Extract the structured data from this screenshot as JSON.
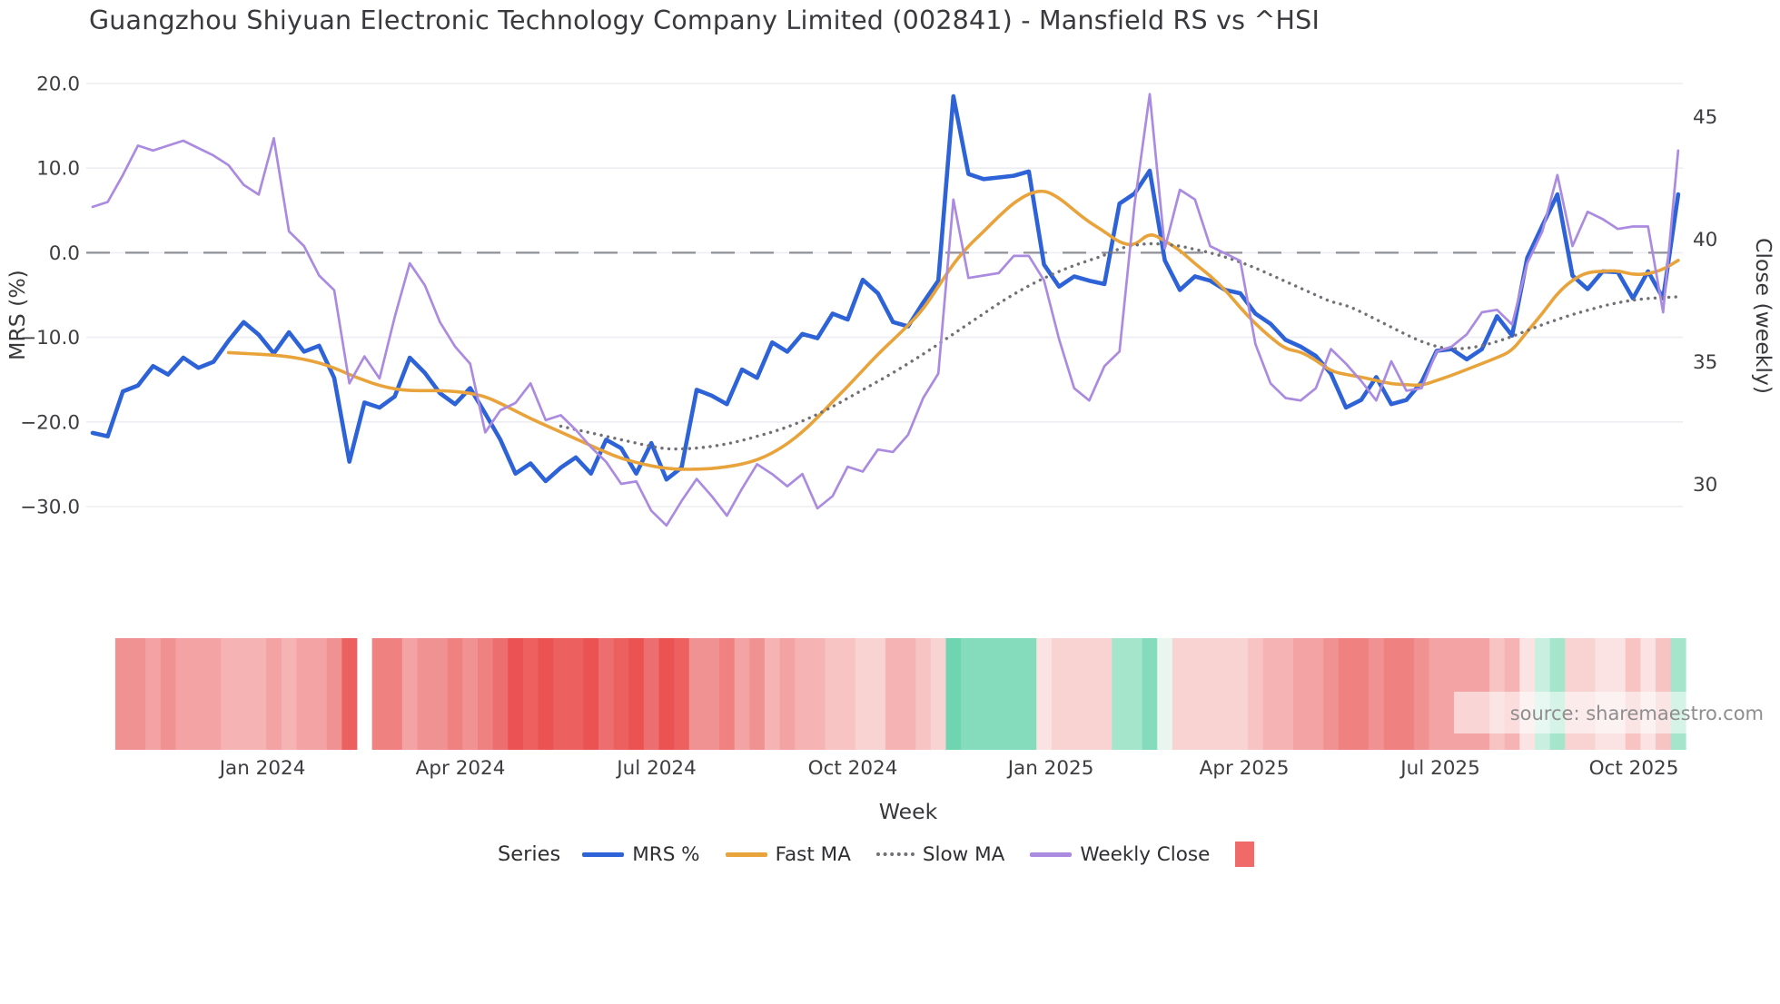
{
  "title": "Guangzhou Shiyuan Electronic Technology Company Limited (002841) - Mansfield RS vs ^HSI",
  "source_label": "source: sharemaestro.com",
  "colors": {
    "mrs": "#2e63d8",
    "fast": "#e9a33b",
    "slow": "#707076",
    "close": "#ab8be0",
    "zero_line": "#8f9097",
    "grid": "#edeef2",
    "heat_square": "#f06a6a",
    "title_text": "#3a3a3e",
    "tick_text": "#3d3d42",
    "source_text": "#8e8e8e"
  },
  "legend": {
    "series_label": "Series",
    "items": [
      {
        "id": "mrs",
        "label": "MRS %",
        "swatch": "line",
        "color_key": "mrs"
      },
      {
        "id": "fast",
        "label": "Fast MA",
        "swatch": "line",
        "color_key": "fast"
      },
      {
        "id": "slow",
        "label": "Slow MA",
        "swatch": "dots",
        "color_key": "slow"
      },
      {
        "id": "close",
        "label": "Weekly Close",
        "swatch": "line",
        "color_key": "close"
      },
      {
        "id": "heat",
        "label": "",
        "swatch": "square",
        "color_key": "heat_square"
      }
    ]
  },
  "chart_data": {
    "type": "line",
    "title": "Guangzhou Shiyuan Electronic Technology Company Limited (002841) - Mansfield RS vs ^HSI",
    "x_axis": {
      "label": "Week",
      "tick_labels": [
        "Jan 2024",
        "Apr 2024",
        "Jul 2024",
        "Oct 2024",
        "Jan 2025",
        "Apr 2025",
        "Jul 2025",
        "Oct 2025"
      ],
      "tick_week_index": [
        11.25,
        24.36,
        37.35,
        50.34,
        63.45,
        76.26,
        89.25,
        102.06
      ],
      "weeks_total": 106
    },
    "left_axis": {
      "label": "MRS (%)",
      "tick_labels": [
        "20.0",
        "10.0",
        "0.0",
        "−10.0",
        "−20.0",
        "−30.0"
      ],
      "tick_values": [
        20,
        10,
        0,
        -10,
        -20,
        -30
      ],
      "zero_dashed_line": true
    },
    "right_axis": {
      "label": "Close (weekly)",
      "tick_labels": [
        "45",
        "40",
        "35",
        "30"
      ],
      "tick_values": [
        45,
        40,
        35,
        30
      ]
    },
    "series": [
      {
        "name": "MRS %",
        "axis": "left",
        "color_key": "mrs",
        "width": 4.6,
        "style": "solid",
        "smooth": false,
        "values": [
          -21.3,
          -21.7,
          -16.4,
          -15.7,
          -13.4,
          -14.4,
          -12.4,
          -13.6,
          -12.9,
          -10.4,
          -8.2,
          -9.7,
          -11.9,
          -9.4,
          -11.7,
          -11.0,
          -14.8,
          -24.7,
          -17.7,
          -18.3,
          -17.0,
          -12.4,
          -14.2,
          -16.6,
          -17.9,
          -16.0,
          -19.0,
          -22.1,
          -26.1,
          -24.9,
          -27.0,
          -25.4,
          -24.2,
          -26.1,
          -22.1,
          -23.1,
          -26.1,
          -22.5,
          -26.8,
          -25.4,
          -16.2,
          -16.9,
          -17.9,
          -13.8,
          -14.8,
          -10.6,
          -11.7,
          -9.6,
          -10.1,
          -7.2,
          -7.9,
          -3.2,
          -4.8,
          -8.2,
          -8.7,
          -5.9,
          -3.3,
          18.5,
          9.3,
          8.7,
          8.9,
          9.1,
          9.6,
          -1.4,
          -4.0,
          -2.8,
          -3.3,
          -3.7,
          5.8,
          7.0,
          9.7,
          -0.9,
          -4.4,
          -2.8,
          -3.3,
          -4.4,
          -4.8,
          -7.2,
          -8.4,
          -10.3,
          -11.1,
          -12.2,
          -14.3,
          -18.3,
          -17.4,
          -14.7,
          -17.9,
          -17.4,
          -15.3,
          -11.6,
          -11.4,
          -12.6,
          -11.4,
          -7.5,
          -9.8,
          -0.6,
          3.2,
          6.9,
          -2.7,
          -4.3,
          -2.2,
          -2.3,
          -5.4,
          -2.2,
          -5.4,
          6.9
        ]
      },
      {
        "name": "Fast MA",
        "axis": "left",
        "color_key": "fast",
        "width": 3.6,
        "style": "solid",
        "smooth": true,
        "values": [
          null,
          null,
          null,
          null,
          null,
          null,
          null,
          null,
          null,
          -11.8,
          -11.9,
          -12.0,
          -12.1,
          -12.3,
          -12.6,
          -13.0,
          -13.6,
          -14.4,
          -15.1,
          -15.7,
          -16.1,
          -16.3,
          -16.3,
          -16.3,
          -16.4,
          -16.6,
          -17.0,
          -17.8,
          -18.7,
          -19.6,
          -20.4,
          -21.2,
          -22.0,
          -22.8,
          -23.6,
          -24.3,
          -24.8,
          -25.2,
          -25.5,
          -25.6,
          -25.6,
          -25.5,
          -25.3,
          -25.0,
          -24.5,
          -23.7,
          -22.6,
          -21.2,
          -19.5,
          -17.6,
          -15.8,
          -13.9,
          -12.0,
          -10.3,
          -8.6,
          -6.7,
          -4.0,
          -1.3,
          0.8,
          2.5,
          4.3,
          5.9,
          7.0,
          7.4,
          6.5,
          5.0,
          3.6,
          2.5,
          1.2,
          0.8,
          2.4,
          1.4,
          0.3,
          -1.3,
          -2.7,
          -4.4,
          -6.5,
          -8.4,
          -10.0,
          -11.4,
          -11.7,
          -12.7,
          -14.0,
          -14.4,
          -14.7,
          -15.1,
          -15.5,
          -15.6,
          -15.7,
          -15.1,
          -14.5,
          -13.8,
          -13.1,
          -12.4,
          -11.6,
          -9.3,
          -7.2,
          -4.8,
          -3.2,
          -2.3,
          -2.2,
          -2.1,
          -2.6,
          -2.5,
          -2.0,
          -0.9
        ]
      },
      {
        "name": "Slow MA",
        "axis": "left",
        "color_key": "slow",
        "width": 3.4,
        "style": "dotted",
        "smooth": true,
        "values": [
          null,
          null,
          null,
          null,
          null,
          null,
          null,
          null,
          null,
          null,
          null,
          null,
          null,
          null,
          null,
          null,
          null,
          null,
          null,
          null,
          null,
          null,
          null,
          null,
          null,
          null,
          null,
          null,
          null,
          null,
          null,
          -20.5,
          -20.9,
          -21.3,
          -21.7,
          -22.1,
          -22.5,
          -22.9,
          -23.2,
          -23.2,
          -23.1,
          -22.9,
          -22.6,
          -22.2,
          -21.7,
          -21.2,
          -20.6,
          -19.9,
          -19.1,
          -18.2,
          -17.2,
          -16.2,
          -15.2,
          -14.2,
          -13.1,
          -12.0,
          -10.8,
          -9.6,
          -8.4,
          -7.2,
          -6.0,
          -4.9,
          -3.9,
          -3.0,
          -2.2,
          -1.5,
          -0.9,
          -0.3,
          0.5,
          0.9,
          1.1,
          1.0,
          0.8,
          0.4,
          0.0,
          -0.5,
          -1.1,
          -1.8,
          -2.6,
          -3.4,
          -4.2,
          -5.0,
          -5.8,
          -6.2,
          -7.0,
          -7.9,
          -8.8,
          -9.7,
          -10.5,
          -11.1,
          -11.4,
          -11.3,
          -11.0,
          -10.5,
          -9.9,
          -9.2,
          -8.5,
          -7.9,
          -7.3,
          -6.8,
          -6.3,
          -5.9,
          -5.6,
          -5.4,
          -5.3,
          -5.2
        ]
      },
      {
        "name": "Weekly Close",
        "axis": "right",
        "color_key": "close",
        "width": 2.7,
        "style": "solid",
        "smooth": false,
        "values": [
          41.3,
          41.5,
          42.6,
          43.8,
          43.6,
          43.8,
          44.0,
          43.7,
          43.4,
          43.0,
          42.2,
          41.8,
          44.1,
          40.3,
          39.7,
          38.5,
          37.9,
          34.1,
          35.2,
          34.3,
          36.8,
          39.0,
          38.1,
          36.6,
          35.6,
          34.9,
          32.1,
          33.0,
          33.3,
          34.1,
          32.6,
          32.8,
          32.2,
          31.5,
          30.9,
          30.0,
          30.1,
          28.9,
          28.3,
          29.3,
          30.2,
          29.5,
          28.7,
          29.8,
          30.8,
          30.4,
          29.9,
          30.4,
          29.0,
          29.5,
          30.7,
          30.5,
          31.4,
          31.3,
          32.0,
          33.5,
          34.5,
          41.6,
          38.4,
          38.5,
          38.6,
          39.3,
          39.3,
          38.3,
          35.9,
          33.9,
          33.4,
          34.8,
          35.4,
          41.4,
          45.9,
          39.6,
          42.0,
          41.6,
          39.7,
          39.4,
          39.1,
          35.7,
          34.1,
          33.5,
          33.4,
          33.9,
          35.5,
          34.9,
          34.2,
          33.4,
          35.0,
          33.8,
          33.9,
          35.4,
          35.6,
          36.1,
          37.0,
          37.1,
          36.5,
          39.0,
          40.3,
          42.6,
          39.7,
          41.1,
          40.8,
          40.4,
          40.5,
          40.5,
          37.0,
          43.6
        ]
      }
    ],
    "heatmap": {
      "description": "weekly relative-strength heat strip, red = weak, green = strong",
      "colors": [
        null,
        null,
        "#f19292",
        "#f19292",
        "#f3a3a3",
        "#f19292",
        "#f3a3a3",
        "#f3a3a3",
        "#f3a3a3",
        "#f5b3b3",
        "#f5b3b3",
        "#f5b3b3",
        "#f3a3a3",
        "#f5b3b3",
        "#f3a3a3",
        "#f3a3a3",
        "#f19292",
        "#ec6060",
        null,
        "#ef8181",
        "#ef8181",
        "#f3a3a3",
        "#f19292",
        "#f19292",
        "#ef8181",
        "#f19292",
        "#ef8181",
        "#ed6e6e",
        "#eb5353",
        "#ec6060",
        "#eb5353",
        "#ec6060",
        "#ec6060",
        "#eb5353",
        "#ed6e6e",
        "#ec6060",
        "#eb5353",
        "#ed6e6e",
        "#eb5353",
        "#ec6060",
        "#f19292",
        "#f19292",
        "#ef8181",
        "#f3a3a3",
        "#f19292",
        "#f5b3b3",
        "#f3a3a3",
        "#f5b3b3",
        "#f5b3b3",
        "#f7c3c3",
        "#f7c3c3",
        "#f9d2d2",
        "#f9d2d2",
        "#f5b3b3",
        "#f5b3b3",
        "#f7c3c3",
        "#f9d2d2",
        "#6fd5b1",
        "#85dcbd",
        "#85dcbd",
        "#85dcbd",
        "#85dcbd",
        "#85dcbd",
        "#fbe3e3",
        "#f9d2d2",
        "#f9d2d2",
        "#f9d2d2",
        "#f9d2d2",
        "#a4e5cc",
        "#a4e5cc",
        "#85dcbd",
        "#e9f6f0",
        "#f9d2d2",
        "#f9d2d2",
        "#f9d2d2",
        "#f9d2d2",
        "#f9d2d2",
        "#f7c3c3",
        "#f5b3b3",
        "#f5b3b3",
        "#f3a3a3",
        "#f3a3a3",
        "#f19292",
        "#ef8181",
        "#ef8181",
        "#f19292",
        "#ef8181",
        "#ef8181",
        "#f19292",
        "#f3a3a3",
        "#f3a3a3",
        "#f3a3a3",
        "#f3a3a3",
        "#f7c3c3",
        "#f5b3b3",
        "#fbe3e3",
        "#c8efdf",
        "#a4e5cc",
        "#f9d2d2",
        "#f9d2d2",
        "#fbe3e3",
        "#fbe3e3",
        "#f7c3c3",
        "#fbe3e3",
        "#f7c3c3",
        "#a4e5cc"
      ]
    }
  }
}
